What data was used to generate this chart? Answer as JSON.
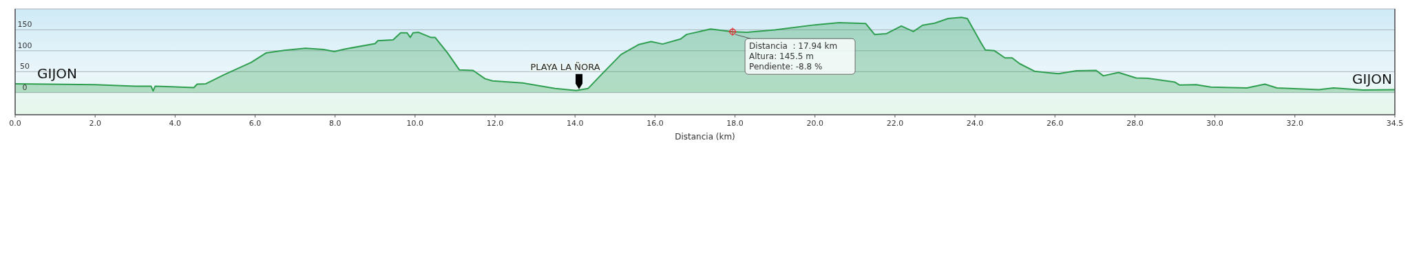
{
  "chart_data": {
    "type": "area",
    "xlabel": "Distancia  (km)",
    "xlim": [
      0,
      34.5
    ],
    "ylim": [
      -53,
      200
    ],
    "xticks": [
      {
        "value": 0,
        "label": "0.0"
      },
      {
        "value": 2,
        "label": "2.0"
      },
      {
        "value": 4,
        "label": "4.0"
      },
      {
        "value": 6,
        "label": "6.0"
      },
      {
        "value": 8,
        "label": "8.0"
      },
      {
        "value": 10,
        "label": "10.0"
      },
      {
        "value": 12,
        "label": "12.0"
      },
      {
        "value": 14,
        "label": "14.0"
      },
      {
        "value": 16,
        "label": "16.0"
      },
      {
        "value": 18,
        "label": "18.0"
      },
      {
        "value": 20,
        "label": "20.0"
      },
      {
        "value": 22,
        "label": "22.0"
      },
      {
        "value": 24,
        "label": "24.0"
      },
      {
        "value": 26,
        "label": "26.0"
      },
      {
        "value": 28,
        "label": "28.0"
      },
      {
        "value": 30,
        "label": "30.0"
      },
      {
        "value": 32,
        "label": "32.0"
      },
      {
        "value": 34.5,
        "label": "34.5"
      }
    ],
    "yticks": [
      0,
      50,
      100,
      150
    ],
    "grid": "y",
    "series": [
      {
        "color": "#2e9e4f",
        "x": [
          0,
          2.0,
          3.0,
          3.4,
          3.45,
          3.5,
          4.47,
          4.55,
          4.77,
          5.23,
          5.9,
          6.28,
          6.73,
          7.26,
          7.71,
          7.98,
          8.24,
          9.0,
          9.07,
          9.45,
          9.64,
          9.8,
          9.88,
          9.95,
          10.09,
          10.39,
          10.5,
          10.81,
          11.11,
          11.45,
          11.75,
          11.94,
          12.69,
          13.5,
          14.03,
          14.33,
          14.7,
          15.15,
          15.6,
          15.9,
          16.19,
          16.64,
          16.79,
          17.39,
          17.94,
          18.3,
          19.0,
          20.0,
          20.6,
          21.27,
          21.49,
          21.79,
          22.16,
          22.46,
          22.69,
          22.99,
          23.33,
          23.66,
          23.81,
          24.15,
          24.26,
          24.49,
          24.75,
          24.93,
          25.12,
          25.49,
          26.09,
          26.54,
          27.03,
          27.21,
          27.59,
          28.03,
          28.33,
          29.0,
          29.12,
          29.53,
          29.9,
          30.8,
          31.25,
          31.55,
          32.6,
          32.97,
          33.7,
          34.5
        ],
        "values": [
          21,
          19,
          15,
          15,
          4,
          15,
          12,
          20,
          21,
          43,
          72,
          95,
          101,
          106,
          103,
          98,
          104,
          117,
          124,
          126,
          143,
          143,
          132,
          143,
          144,
          132,
          132,
          95,
          54,
          53,
          33,
          28,
          23,
          10,
          5,
          10,
          47,
          91,
          115,
          122,
          116,
          128,
          139,
          152,
          145.5,
          144,
          150,
          162,
          167,
          165,
          139,
          141,
          159,
          146,
          161,
          166,
          177,
          180,
          177,
          119,
          102,
          100,
          83,
          83,
          69,
          51,
          45,
          52,
          53,
          40,
          48,
          35,
          34,
          25,
          18,
          19,
          13,
          11,
          20,
          11,
          7,
          11,
          6,
          7
        ]
      }
    ],
    "annotations": [
      {
        "text": "GIJON",
        "x": 0,
        "y": 21
      },
      {
        "text": "PLAYA LA ÑORA",
        "x": 14.1,
        "y": 5
      },
      {
        "text": "GIJON",
        "x": 34.5,
        "y": 7
      },
      {
        "text": "Distancia  : 17.94 km\nAltura: 145.5 m\nPendiente: -8.8 %",
        "x": 17.94,
        "y": 145.5
      }
    ]
  }
}
